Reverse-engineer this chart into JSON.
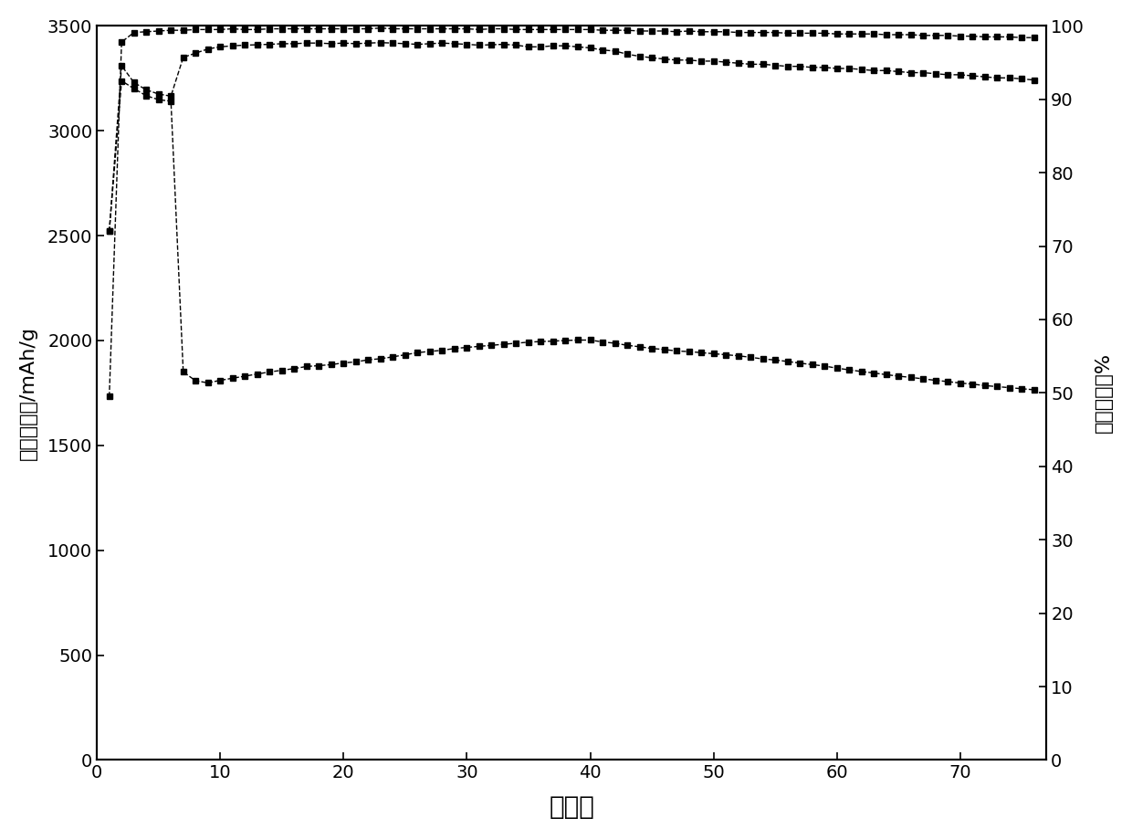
{
  "title": "",
  "xlabel": "循环数",
  "ylabel_left": "可逆容量／/mAh/g",
  "ylabel_right": "库仓效率／%",
  "xlim": [
    0,
    77
  ],
  "ylim_left": [
    0,
    3500
  ],
  "ylim_right": [
    0,
    100
  ],
  "xticks": [
    0,
    10,
    20,
    30,
    40,
    50,
    60,
    70
  ],
  "yticks_left": [
    0,
    500,
    1000,
    1500,
    2000,
    2500,
    3000,
    3500
  ],
  "yticks_right": [
    0,
    10,
    20,
    30,
    40,
    50,
    60,
    70,
    80,
    90,
    100
  ],
  "capacity_x": [
    1,
    2,
    3,
    4,
    5,
    6,
    7,
    8,
    9,
    10,
    11,
    12,
    13,
    14,
    15,
    16,
    17,
    18,
    19,
    20,
    21,
    22,
    23,
    24,
    25,
    26,
    27,
    28,
    29,
    30,
    31,
    32,
    33,
    34,
    35,
    36,
    37,
    38,
    39,
    40,
    41,
    42,
    43,
    44,
    45,
    46,
    47,
    48,
    49,
    50,
    51,
    52,
    53,
    54,
    55,
    56,
    57,
    58,
    59,
    60,
    61,
    62,
    63,
    64,
    65,
    66,
    67,
    68,
    69,
    70,
    71,
    72,
    73,
    74,
    75,
    76
  ],
  "capacity_y": [
    2520,
    3310,
    3230,
    3195,
    3175,
    3165,
    3350,
    3370,
    3390,
    3400,
    3405,
    3408,
    3410,
    3412,
    3415,
    3415,
    3418,
    3418,
    3415,
    3418,
    3415,
    3418,
    3420,
    3418,
    3415,
    3412,
    3415,
    3418,
    3415,
    3412,
    3408,
    3410,
    3412,
    3408,
    3400,
    3400,
    3405,
    3405,
    3400,
    3395,
    3385,
    3380,
    3365,
    3355,
    3348,
    3342,
    3337,
    3337,
    3332,
    3332,
    3327,
    3322,
    3317,
    3317,
    3312,
    3307,
    3307,
    3302,
    3302,
    3297,
    3297,
    3292,
    3287,
    3287,
    3282,
    3277,
    3277,
    3272,
    3267,
    3267,
    3262,
    3257,
    3252,
    3252,
    3247,
    3242
  ],
  "efficiency_x": [
    1,
    2,
    3,
    4,
    5,
    6,
    7,
    8,
    9,
    10,
    11,
    12,
    13,
    14,
    15,
    16,
    17,
    18,
    19,
    20,
    21,
    22,
    23,
    24,
    25,
    26,
    27,
    28,
    29,
    30,
    31,
    32,
    33,
    34,
    35,
    36,
    37,
    38,
    39,
    40,
    41,
    42,
    43,
    44,
    45,
    46,
    47,
    48,
    49,
    50,
    51,
    52,
    53,
    54,
    55,
    56,
    57,
    58,
    59,
    60,
    61,
    62,
    63,
    64,
    65,
    66,
    67,
    68,
    69,
    70,
    71,
    72,
    73,
    74,
    75,
    76
  ],
  "efficiency_y": [
    49.5,
    97.8,
    99.1,
    99.2,
    99.3,
    99.4,
    99.4,
    99.5,
    99.5,
    99.5,
    99.6,
    99.5,
    99.5,
    99.6,
    99.6,
    99.6,
    99.6,
    99.6,
    99.6,
    99.6,
    99.6,
    99.6,
    99.7,
    99.6,
    99.6,
    99.6,
    99.6,
    99.6,
    99.6,
    99.6,
    99.5,
    99.6,
    99.6,
    99.5,
    99.5,
    99.5,
    99.5,
    99.5,
    99.5,
    99.5,
    99.4,
    99.4,
    99.4,
    99.3,
    99.3,
    99.3,
    99.2,
    99.3,
    99.2,
    99.2,
    99.2,
    99.1,
    99.1,
    99.1,
    99.1,
    99.0,
    99.0,
    99.0,
    99.0,
    98.9,
    98.9,
    98.9,
    98.9,
    98.8,
    98.8,
    98.8,
    98.7,
    98.7,
    98.7,
    98.6,
    98.6,
    98.5,
    98.5,
    98.5,
    98.4,
    98.4
  ],
  "discharge_x": [
    1,
    2,
    3,
    4,
    5,
    6,
    7,
    8,
    9,
    10,
    11,
    12,
    13,
    14,
    15,
    16,
    17,
    18,
    19,
    20,
    21,
    22,
    23,
    24,
    25,
    26,
    27,
    28,
    29,
    30,
    31,
    32,
    33,
    34,
    35,
    36,
    37,
    38,
    39,
    40,
    41,
    42,
    43,
    44,
    45,
    46,
    47,
    48,
    49,
    50,
    51,
    52,
    53,
    54,
    55,
    56,
    57,
    58,
    59,
    60,
    61,
    62,
    63,
    64,
    65,
    66,
    67,
    68,
    69,
    70,
    71,
    72,
    73,
    74,
    75,
    76
  ],
  "discharge_y": [
    2520,
    3238,
    3201,
    3167,
    3148,
    3141,
    1850,
    1808,
    1798,
    1810,
    1820,
    1830,
    1840,
    1850,
    1858,
    1866,
    1876,
    1880,
    1885,
    1893,
    1898,
    1908,
    1913,
    1922,
    1932,
    1942,
    1948,
    1953,
    1962,
    1967,
    1972,
    1977,
    1982,
    1987,
    1992,
    1995,
    1997,
    2000,
    2002,
    2002,
    1993,
    1987,
    1977,
    1970,
    1962,
    1957,
    1950,
    1947,
    1942,
    1937,
    1932,
    1927,
    1920,
    1912,
    1907,
    1900,
    1892,
    1885,
    1878,
    1868,
    1860,
    1852,
    1845,
    1837,
    1830,
    1824,
    1817,
    1810,
    1804,
    1797,
    1792,
    1785,
    1780,
    1775,
    1770,
    1765
  ],
  "line_color": "#000000",
  "marker_style": "s",
  "marker_size": 5,
  "background_color": "#ffffff",
  "font_size_ticks": 14,
  "font_size_labels": 16
}
